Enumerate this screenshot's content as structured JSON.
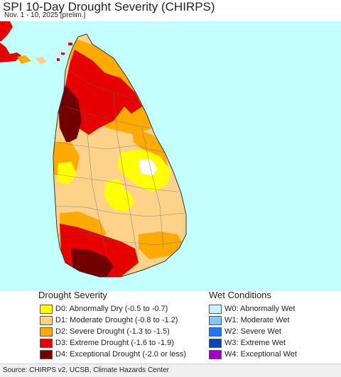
{
  "header": {
    "title": "SPI 10-Day Drought Severity (CHIRPS)",
    "subtitle": "Nov. 1 - 10, 2025 [prelim.]"
  },
  "colors": {
    "ocean": "#c4ffff",
    "d0": "#ffff00",
    "d1": "#ffd28a",
    "d2": "#ffaa00",
    "d3": "#e60000",
    "d4": "#730000",
    "w0": "#c8f0ff",
    "w1": "#82c8ff",
    "w2": "#1e78ff",
    "w3": "#0a46b4",
    "w4": "#a000c8"
  },
  "legend": {
    "drought_title": "Drought Severity",
    "drought_items": [
      {
        "label": "D0: Abnormally Dry (-0.5 to -0.7)",
        "color": "#ffff00"
      },
      {
        "label": "D1: Moderate Drought (-0.8 to -1.2)",
        "color": "#ffd28a"
      },
      {
        "label": "D2: Severe Drought (-1.3 to -1.5)",
        "color": "#ffaa00"
      },
      {
        "label": "D3: Extreme Drought (-1.6 to -1.9)",
        "color": "#e60000"
      },
      {
        "label": "D4: Exceptional Drought (-2.0 or less)",
        "color": "#730000"
      }
    ],
    "wet_title": "Wet Conditions",
    "wet_items": [
      {
        "label": "W0: Abnormally Wet",
        "color": "#c8f0ff"
      },
      {
        "label": "W1: Moderate Wet",
        "color": "#82c8ff"
      },
      {
        "label": "W2: Severe Wet",
        "color": "#1e78ff"
      },
      {
        "label": "W3: Extreme Wet",
        "color": "#0a46b4"
      },
      {
        "label": "W4: Exceptional Wet",
        "color": "#a000c8"
      }
    ]
  },
  "footer": {
    "source": "Source: CHIRPS v2, UCSB, Climate Hazards Center"
  }
}
